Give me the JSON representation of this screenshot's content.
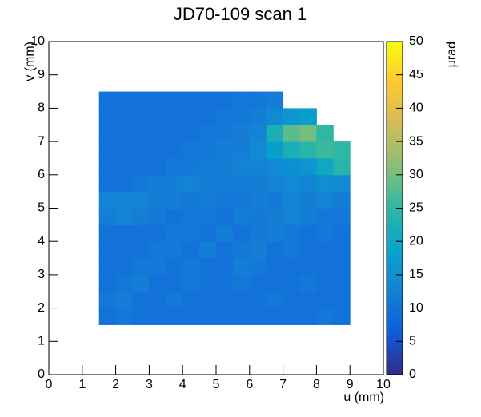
{
  "chart_data": {
    "type": "heatmap",
    "title": "JD70-109 scan 1",
    "x_label": "u (mm)",
    "y_label": "v (mm)",
    "z_label": "µrad",
    "xlim": [
      0,
      10
    ],
    "ylim": [
      0,
      10
    ],
    "zlim": [
      0,
      50
    ],
    "xticks": [
      0,
      1,
      2,
      3,
      4,
      5,
      6,
      7,
      8,
      9,
      10
    ],
    "yticks": [
      0,
      1,
      2,
      3,
      4,
      5,
      6,
      7,
      8,
      9,
      10
    ],
    "zticks": [
      0,
      5,
      10,
      15,
      20,
      25,
      30,
      35,
      40,
      45,
      50
    ],
    "colorscale": [
      "#352a87",
      "#0f5cdd",
      "#1481d6",
      "#06a4ca",
      "#2eb7a4",
      "#87bf77",
      "#d1bb59",
      "#fec832",
      "#f9fb0e"
    ],
    "xbins": [
      1.5,
      2,
      2.5,
      3,
      3.5,
      4,
      4.5,
      5,
      5.5,
      6,
      6.5,
      7,
      7.5,
      8,
      8.5,
      9
    ],
    "ybins": [
      1.5,
      2,
      2.5,
      3,
      3.5,
      4,
      4.5,
      5,
      5.5,
      6,
      6.5,
      7,
      7.5,
      8,
      8.5,
      9
    ],
    "z": [
      [
        10,
        11,
        10,
        10,
        10,
        10,
        10,
        10,
        10,
        10,
        10,
        10,
        10,
        11,
        10
      ],
      [
        11,
        12,
        10,
        10,
        11,
        10,
        10,
        10,
        10,
        10,
        11,
        10,
        10,
        10,
        10
      ],
      [
        10,
        11,
        12,
        10,
        10,
        11,
        10,
        10,
        11,
        10,
        10,
        10,
        11,
        10,
        10
      ],
      [
        10,
        10,
        11,
        11,
        10,
        11,
        10,
        10,
        12,
        11,
        10,
        10,
        10,
        10,
        10
      ],
      [
        10,
        10,
        10,
        11,
        11,
        10,
        12,
        10,
        11,
        12,
        10,
        11,
        10,
        10,
        10
      ],
      [
        10,
        10,
        10,
        10,
        11,
        11,
        10,
        12,
        10,
        11,
        12,
        11,
        10,
        11,
        10
      ],
      [
        12,
        13,
        12,
        11,
        10,
        11,
        11,
        10,
        12,
        11,
        12,
        13,
        12,
        11,
        11
      ],
      [
        13,
        13,
        13,
        12,
        12,
        11,
        12,
        11,
        11,
        12,
        11,
        13,
        12,
        13,
        12
      ],
      [
        10,
        10,
        11,
        12,
        12,
        13,
        12,
        12,
        12,
        12,
        13,
        14,
        13,
        15,
        14
      ],
      [
        10,
        10,
        10,
        10,
        11,
        11,
        12,
        12,
        13,
        13,
        14,
        15,
        16,
        20,
        24
      ],
      [
        10,
        10,
        10,
        10,
        10,
        11,
        11,
        12,
        12,
        14,
        18,
        22,
        24,
        26,
        25
      ],
      [
        10,
        10,
        10,
        10,
        10,
        10,
        11,
        11,
        12,
        13,
        22,
        28,
        30,
        25,
        null
      ],
      [
        10,
        10,
        10,
        10,
        10,
        10,
        10,
        11,
        11,
        12,
        14,
        16,
        18,
        null,
        null
      ],
      [
        10,
        10,
        10,
        10,
        10,
        10,
        10,
        10,
        11,
        11,
        12,
        null,
        null,
        null,
        null
      ],
      [
        null,
        null,
        null,
        null,
        null,
        null,
        null,
        null,
        null,
        null,
        null,
        null,
        null,
        null,
        null
      ]
    ]
  }
}
